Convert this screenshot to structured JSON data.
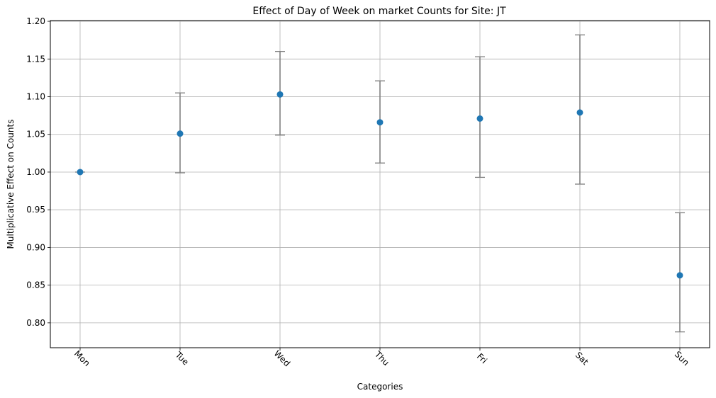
{
  "chart_data": {
    "type": "scatter",
    "title": "Effect of Day of Week on market Counts for Site: JT",
    "xlabel": "Categories",
    "ylabel": "Multiplicative Effect on Counts",
    "categories": [
      "Mon",
      "Tue",
      "Wed",
      "Thu",
      "Fri",
      "Sat",
      "Sun"
    ],
    "values": [
      1.0,
      1.051,
      1.103,
      1.066,
      1.071,
      1.079,
      0.863
    ],
    "lower": [
      1.0,
      0.999,
      1.049,
      1.012,
      0.993,
      0.984,
      0.788
    ],
    "upper": [
      1.0,
      1.105,
      1.16,
      1.121,
      1.153,
      1.182,
      0.946
    ],
    "ylim": [
      0.767,
      1.201
    ],
    "yticks": [
      0.8,
      0.85,
      0.9,
      0.95,
      1.0,
      1.05,
      1.1,
      1.15,
      1.2
    ],
    "ytick_labels": [
      "0.80",
      "0.85",
      "0.90",
      "0.95",
      "1.00",
      "1.05",
      "1.10",
      "1.15",
      "1.20"
    ],
    "grid": true,
    "x_tick_rotation": 45,
    "colors": {
      "point": "#1f77b4",
      "errorbar": "#808080",
      "grid": "#b0b0b0"
    }
  }
}
